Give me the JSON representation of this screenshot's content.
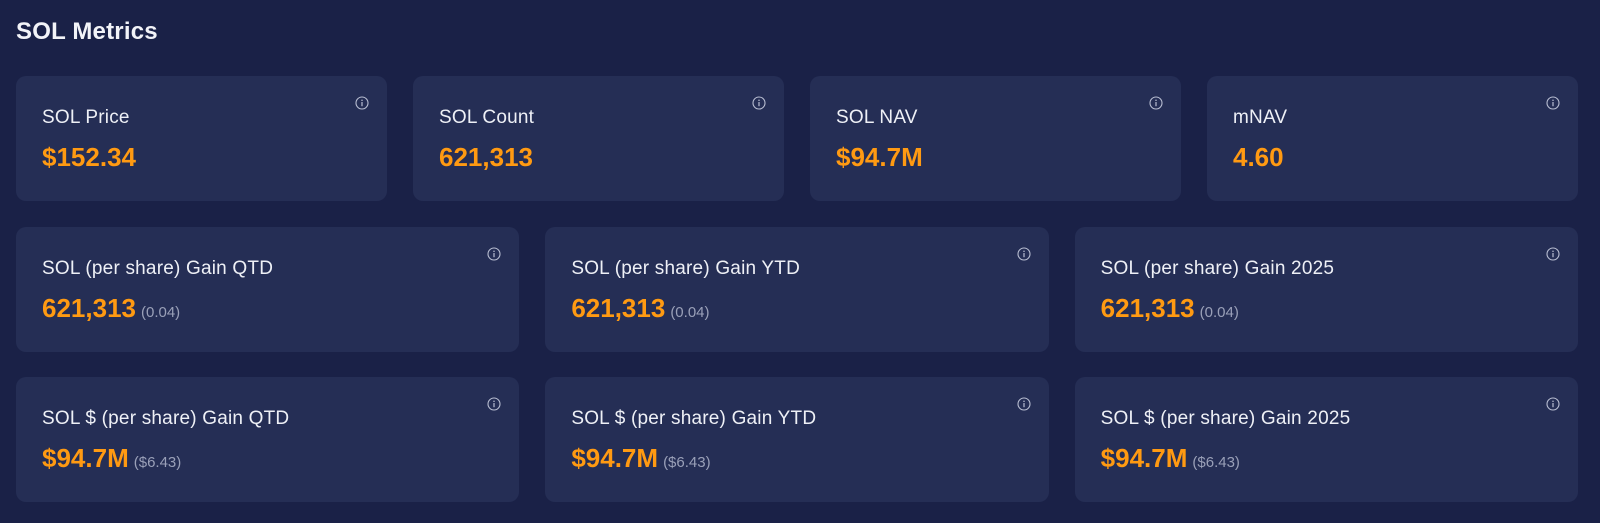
{
  "page": {
    "title": "SOL Metrics"
  },
  "row1": [
    {
      "label": "SOL Price",
      "value": "$152.34"
    },
    {
      "label": "SOL Count",
      "value": "621,313"
    },
    {
      "label": "SOL NAV",
      "value": "$94.7M"
    },
    {
      "label": "mNAV",
      "value": "4.60"
    }
  ],
  "row2": [
    {
      "label": "SOL (per share) Gain QTD",
      "value": "621,313",
      "sub": "(0.04)"
    },
    {
      "label": "SOL (per share) Gain YTD",
      "value": "621,313",
      "sub": "(0.04)"
    },
    {
      "label": "SOL (per share) Gain 2025",
      "value": "621,313",
      "sub": "(0.04)"
    }
  ],
  "row3": [
    {
      "label": "SOL $ (per share) Gain QTD",
      "value": "$94.7M",
      "sub": "($6.43)"
    },
    {
      "label": "SOL $ (per share) Gain YTD",
      "value": "$94.7M",
      "sub": "($6.43)"
    },
    {
      "label": "SOL $ (per share) Gain 2025",
      "value": "$94.7M",
      "sub": "($6.43)"
    }
  ],
  "colors": {
    "background": "#1a2147",
    "card": "#252e55",
    "accent": "#ff9a12",
    "muted": "#9aa0b8"
  },
  "icons": {
    "info": "info-icon"
  }
}
